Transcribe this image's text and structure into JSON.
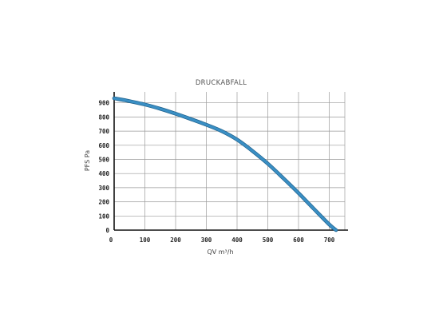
{
  "chart_data": {
    "type": "line",
    "title": "DRUCKABFALL",
    "xlabel": "QV m³/h",
    "ylabel": "PFS Pa",
    "xlim": [
      0,
      750
    ],
    "ylim": [
      0,
      950
    ],
    "x_ticks": [
      "0",
      "100",
      "200",
      "300",
      "400",
      "500",
      "600",
      "700"
    ],
    "y_ticks": [
      "0",
      "100",
      "200",
      "300",
      "400",
      "500",
      "600",
      "700",
      "800",
      "900"
    ],
    "grid": true,
    "series": [
      {
        "color": "#3a8fc4",
        "points": [
          [
            0,
            932
          ],
          [
            50,
            912
          ],
          [
            100,
            888
          ],
          [
            150,
            858
          ],
          [
            200,
            823
          ],
          [
            250,
            785
          ],
          [
            300,
            745
          ],
          [
            350,
            700
          ],
          [
            400,
            640
          ],
          [
            450,
            560
          ],
          [
            500,
            470
          ],
          [
            550,
            368
          ],
          [
            600,
            262
          ],
          [
            650,
            150
          ],
          [
            700,
            40
          ],
          [
            722,
            0
          ]
        ]
      }
    ]
  }
}
